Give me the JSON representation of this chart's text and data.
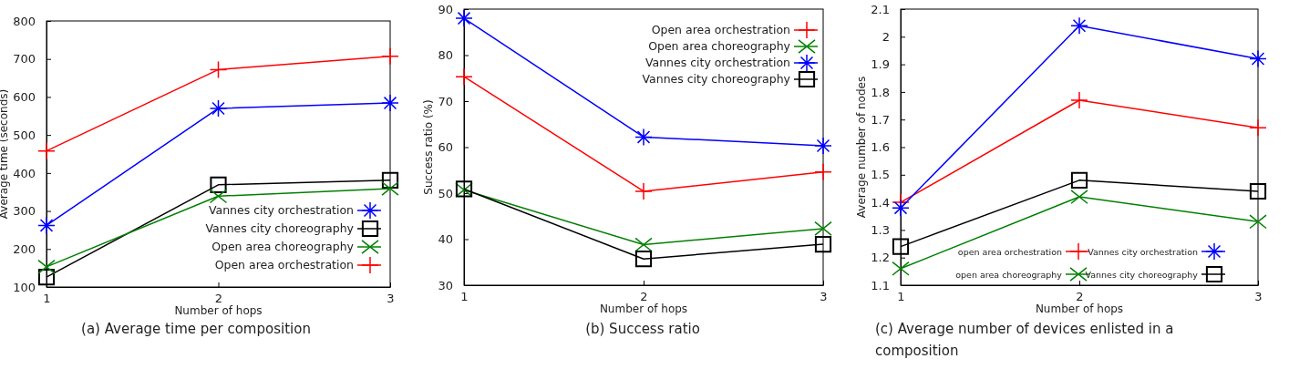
{
  "chart_data": [
    {
      "type": "line",
      "xlabel": "Number of hops",
      "ylabel": "Average time (seconds)",
      "annotations": [
        "(a) Average time per composition"
      ],
      "x": [
        1,
        2,
        3
      ],
      "xlim": [
        1,
        3
      ],
      "xticks": [
        1,
        2,
        3
      ],
      "ylim": [
        100,
        800
      ],
      "yticks": [
        100,
        200,
        300,
        400,
        500,
        600,
        700,
        800
      ],
      "legend": "bottom right",
      "grid": false,
      "series": [
        {
          "name": "Vannes city orchestration",
          "color": "#0000ff",
          "marker": "cross",
          "values": [
            262,
            570,
            584
          ]
        },
        {
          "name": "Vannes city choreography",
          "color": "#000000",
          "marker": "square",
          "values": [
            126,
            369,
            381
          ]
        },
        {
          "name": "Open area choreography",
          "color": "#008000",
          "marker": "x",
          "values": [
            153,
            339,
            359
          ]
        },
        {
          "name": "Open area orchestration",
          "color": "#ff0000",
          "marker": "plus",
          "values": [
            458,
            672,
            707
          ]
        }
      ]
    },
    {
      "type": "line",
      "xlabel": "Number of hops",
      "ylabel": "Success ratio (%)",
      "annotations": [
        "(b) Success ratio"
      ],
      "x": [
        1,
        2,
        3
      ],
      "xlim": [
        1,
        3
      ],
      "xticks": [
        1,
        2,
        3
      ],
      "ylim": [
        30,
        90
      ],
      "yticks": [
        30,
        40,
        50,
        60,
        70,
        80,
        90
      ],
      "legend": "top right",
      "grid": false,
      "series": [
        {
          "name": "Open area orchestration",
          "color": "#ff0000",
          "marker": "plus",
          "values": [
            75.3,
            50.4,
            54.6
          ]
        },
        {
          "name": "Open area choreography",
          "color": "#008000",
          "marker": "x",
          "values": [
            50.7,
            38.8,
            42.3
          ]
        },
        {
          "name": "Vannes city orchestration",
          "color": "#0000ff",
          "marker": "cross",
          "values": [
            88.0,
            62.2,
            60.3
          ]
        },
        {
          "name": "Vannes city choreography",
          "color": "#000000",
          "marker": "square",
          "values": [
            50.9,
            35.7,
            38.9
          ]
        }
      ]
    },
    {
      "type": "line",
      "xlabel": "Number of hops",
      "ylabel": "Average number of nodes",
      "annotations": [
        "(c) Average number of devices enlisted in a composition"
      ],
      "x": [
        1,
        2,
        3
      ],
      "xlim": [
        1,
        3
      ],
      "xticks": [
        1,
        2,
        3
      ],
      "ylim": [
        1.1,
        2.1
      ],
      "yticks": [
        1.1,
        1.2,
        1.3,
        1.4,
        1.5,
        1.6,
        1.7,
        1.8,
        1.9,
        2,
        2.1
      ],
      "legend": "bottom",
      "grid": false,
      "series": [
        {
          "name": "open area orchestration",
          "color": "#ff0000",
          "marker": "plus",
          "values": [
            1.4,
            1.77,
            1.67
          ]
        },
        {
          "name": "open area choreography",
          "color": "#008000",
          "marker": "x",
          "values": [
            1.16,
            1.42,
            1.33
          ]
        },
        {
          "name": "Vannes city orchestration",
          "color": "#0000ff",
          "marker": "cross",
          "values": [
            1.38,
            2.04,
            1.92
          ]
        },
        {
          "name": "Vannes city choreography",
          "color": "#000000",
          "marker": "square",
          "values": [
            1.24,
            1.48,
            1.44
          ]
        }
      ]
    }
  ]
}
